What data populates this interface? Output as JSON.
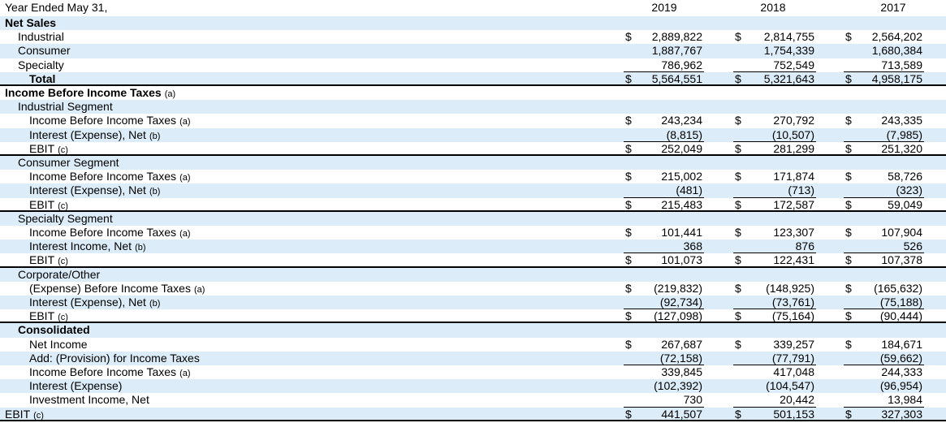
{
  "header": {
    "label": "Year Ended May 31,",
    "years": [
      "2019",
      "2018",
      "2017"
    ]
  },
  "rows": [
    {
      "label": "Net Sales"
    },
    {
      "label": "Industrial",
      "currency": "$",
      "values": [
        "2,889,822",
        "2,814,755",
        "2,564,202"
      ]
    },
    {
      "label": "Consumer",
      "values": [
        "1,887,767",
        "1,754,339",
        "1,680,384"
      ]
    },
    {
      "label": "Specialty",
      "values": [
        "786,962",
        "752,549",
        "713,589"
      ]
    },
    {
      "label": "Total",
      "currency": "$",
      "values": [
        "5,564,551",
        "5,321,643",
        "4,958,175"
      ]
    },
    {
      "label": "Income Before Income Taxes",
      "note": "(a)"
    },
    {
      "label": "Industrial Segment"
    },
    {
      "label": "Income Before Income Taxes",
      "note": "(a)",
      "currency": "$",
      "values": [
        "243,234",
        "270,792",
        "243,335"
      ]
    },
    {
      "label": "Interest (Expense), Net",
      "note": "(b)",
      "values": [
        "(8,815)",
        "(10,507)",
        "(7,985)"
      ]
    },
    {
      "label": "EBIT",
      "note": "(c)",
      "currency": "$",
      "values": [
        "252,049",
        "281,299",
        "251,320"
      ]
    },
    {
      "label": "Consumer Segment"
    },
    {
      "label": "Income Before Income Taxes",
      "note": "(a)",
      "currency": "$",
      "values": [
        "215,002",
        "171,874",
        "58,726"
      ]
    },
    {
      "label": "Interest (Expense), Net",
      "note": "(b)",
      "values": [
        "(481)",
        "(713)",
        "(323)"
      ]
    },
    {
      "label": "EBIT",
      "note": "(c)",
      "currency": "$",
      "values": [
        "215,483",
        "172,587",
        "59,049"
      ]
    },
    {
      "label": "Specialty Segment"
    },
    {
      "label": "Income Before Income Taxes",
      "note": "(a)",
      "currency": "$",
      "values": [
        "101,441",
        "123,307",
        "107,904"
      ]
    },
    {
      "label": "Interest Income, Net",
      "note": "(b)",
      "values": [
        "368",
        "876",
        "526"
      ]
    },
    {
      "label": "EBIT",
      "note": "(c)",
      "currency": "$",
      "values": [
        "101,073",
        "122,431",
        "107,378"
      ]
    },
    {
      "label": "Corporate/Other"
    },
    {
      "label": "(Expense) Before Income Taxes",
      "note": "(a)",
      "currency": "$",
      "values": [
        "(219,832)",
        "(148,925)",
        "(165,632)"
      ]
    },
    {
      "label": "Interest (Expense), Net",
      "note": "(b)",
      "values": [
        "(92,734)",
        "(73,761)",
        "(75,188)"
      ]
    },
    {
      "label": "EBIT",
      "note": "(c)",
      "currency": "$",
      "values": [
        "(127,098)",
        "(75,164)",
        "(90,444)"
      ]
    },
    {
      "label": "Consolidated"
    },
    {
      "label": "Net Income",
      "currency": "$",
      "values": [
        "267,687",
        "339,257",
        "184,671"
      ]
    },
    {
      "label": "Add: (Provision) for Income Taxes",
      "values": [
        "(72,158)",
        "(77,791)",
        "(59,662)"
      ]
    },
    {
      "label": "Income Before Income Taxes",
      "note": "(a)",
      "values": [
        "339,845",
        "417,048",
        "244,333"
      ]
    },
    {
      "label": "Interest (Expense)",
      "values": [
        "(102,392)",
        "(104,547)",
        "(96,954)"
      ]
    },
    {
      "label": "Investment Income, Net",
      "values": [
        "730",
        "20,442",
        "13,984"
      ]
    },
    {
      "label": "EBIT",
      "note": "(c)",
      "currency": "$",
      "values": [
        "441,507",
        "501,153",
        "327,303"
      ]
    }
  ]
}
